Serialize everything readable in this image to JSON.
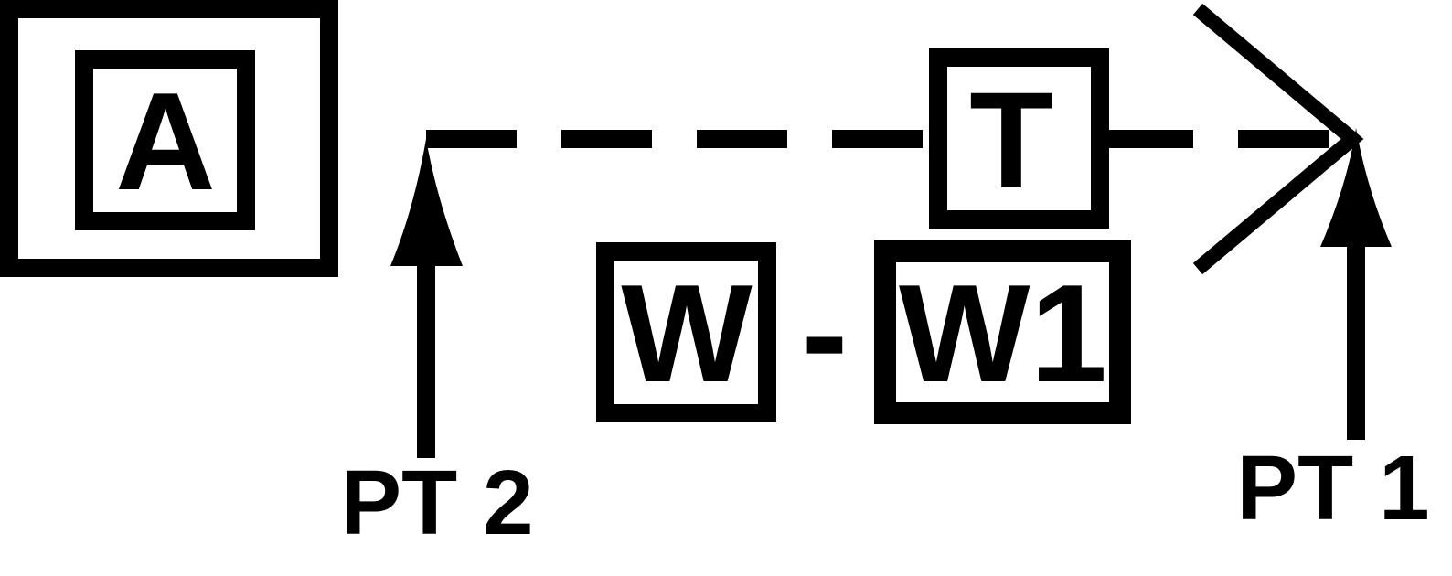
{
  "symbols": {
    "outer_box_letter": "A",
    "tee_box_letter": "T",
    "left_weld_letter": "W",
    "separator": "-",
    "right_weld_letter": "W1"
  },
  "points": {
    "left": "PT 2",
    "right": "PT 1"
  },
  "colors": {
    "stroke": "#000000",
    "background": "#ffffff"
  }
}
